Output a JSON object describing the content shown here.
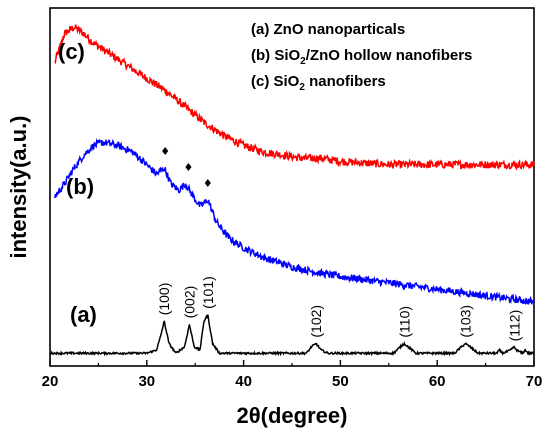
{
  "chart_data": {
    "type": "line",
    "xlabel": "2θ(degree)",
    "ylabel": "intensity(a.u.)",
    "xlim": [
      20,
      70
    ],
    "xticks": [
      20,
      30,
      40,
      50,
      60,
      70
    ],
    "grid": false,
    "legend_position": "top-right",
    "legend": [
      {
        "prefix": "(a) ZnO nanoparticals"
      },
      {
        "prefix": "(b) SiO",
        "sub": "2",
        "suffix": "/ZnO hollow nanofibers"
      },
      {
        "prefix": "(c) SiO",
        "sub": "2",
        "suffix": " nanofibers"
      }
    ],
    "series": [
      {
        "label": "(c)",
        "color": "#ff0000",
        "x": [
          20.5,
          21.5,
          22.5,
          23.5,
          24.5,
          26,
          28,
          30,
          32,
          34,
          36,
          38,
          40,
          42,
          44,
          46,
          48,
          50,
          55,
          60,
          65,
          70
        ],
        "y": [
          0.83,
          0.92,
          0.94,
          0.92,
          0.89,
          0.86,
          0.82,
          0.78,
          0.74,
          0.69,
          0.64,
          0.6,
          0.57,
          0.55,
          0.54,
          0.53,
          0.53,
          0.52,
          0.51,
          0.51,
          0.51,
          0.51
        ]
      },
      {
        "label": "(b)",
        "color": "#0000ff",
        "x": [
          20.5,
          21.5,
          22.5,
          23.5,
          24.5,
          25.5,
          27,
          28.5,
          30,
          31,
          31.8,
          32.5,
          33.3,
          34,
          34.8,
          35.5,
          36.3,
          37.2,
          38.5,
          40,
          42,
          45,
          48,
          50,
          55,
          60,
          65,
          70
        ],
        "y": [
          0.41,
          0.45,
          0.5,
          0.54,
          0.57,
          0.58,
          0.57,
          0.55,
          0.51,
          0.48,
          0.5,
          0.45,
          0.43,
          0.45,
          0.41,
          0.38,
          0.4,
          0.33,
          0.28,
          0.25,
          0.22,
          0.19,
          0.17,
          0.16,
          0.14,
          0.12,
          0.1,
          0.08
        ]
      },
      {
        "label": "(a)",
        "color": "#000000",
        "x": [
          20,
          30,
          31,
          31.4,
          31.8,
          32.3,
          33,
          33.9,
          34.4,
          34.9,
          35.5,
          35.9,
          36.3,
          36.8,
          37.5,
          40,
          46.5,
          47,
          47.5,
          48,
          48.7,
          55.5,
          56.2,
          56.6,
          57,
          57.8,
          61.8,
          62.5,
          62.9,
          63.4,
          64.2,
          66.2,
          66.4,
          66.8,
          67.6,
          67.9,
          68.2,
          68.8,
          69.1,
          69.4,
          70
        ],
        "y": [
          -0.08,
          -0.08,
          -0.07,
          -0.03,
          0.02,
          -0.05,
          -0.08,
          -0.06,
          0.01,
          -0.06,
          -0.07,
          0.02,
          0.04,
          -0.05,
          -0.08,
          -0.08,
          -0.08,
          -0.06,
          -0.05,
          -0.07,
          -0.08,
          -0.08,
          -0.06,
          -0.05,
          -0.06,
          -0.08,
          -0.08,
          -0.06,
          -0.05,
          -0.06,
          -0.08,
          -0.08,
          -0.07,
          -0.08,
          -0.07,
          -0.06,
          -0.07,
          -0.08,
          -0.07,
          -0.08,
          -0.08
        ]
      }
    ],
    "peak_labels": [
      {
        "text": "(100)",
        "x": 31.8
      },
      {
        "text": "(002)",
        "x": 34.4
      },
      {
        "text": "(101)",
        "x": 36.3
      },
      {
        "text": "(102)",
        "x": 47.5
      },
      {
        "text": "(110)",
        "x": 56.6
      },
      {
        "text": "(103)",
        "x": 62.9
      },
      {
        "text": "(112)",
        "x": 68.0
      }
    ],
    "markers": [
      {
        "symbol": "♦",
        "x": 31.9,
        "y": 0.54
      },
      {
        "symbol": "♦",
        "x": 34.3,
        "y": 0.49
      },
      {
        "symbol": "♦",
        "x": 36.3,
        "y": 0.44
      }
    ]
  }
}
